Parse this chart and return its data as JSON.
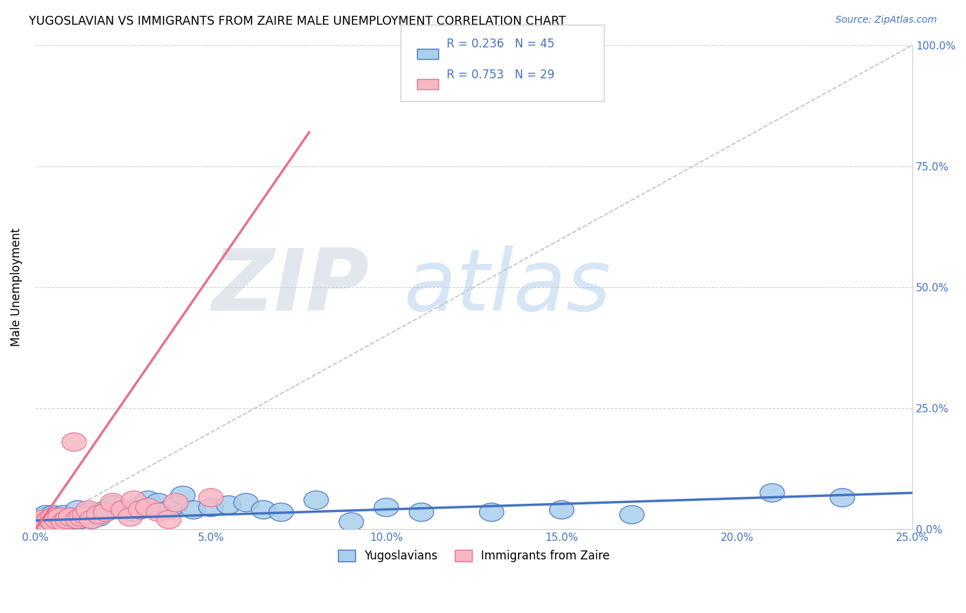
{
  "title": "YUGOSLAVIAN VS IMMIGRANTS FROM ZAIRE MALE UNEMPLOYMENT CORRELATION CHART",
  "source": "Source: ZipAtlas.com",
  "xlim": [
    0.0,
    0.25
  ],
  "ylim": [
    0.0,
    1.0
  ],
  "watermark_zip": "ZIP",
  "watermark_atlas": "atlas",
  "legend1_r": "0.236",
  "legend1_n": "45",
  "legend2_r": "0.753",
  "legend2_n": "29",
  "color_blue_fill": "#A8CFEC",
  "color_pink_fill": "#F7B8C4",
  "color_blue_edge": "#4472C4",
  "color_pink_edge": "#E87090",
  "color_blue_line": "#4472C4",
  "color_pink_line": "#E87090",
  "color_diag": "#C0C0C0",
  "color_grid": "#D0D0D0",
  "yugoslavian_x": [
    0.001,
    0.002,
    0.003,
    0.003,
    0.004,
    0.005,
    0.005,
    0.006,
    0.007,
    0.008,
    0.009,
    0.01,
    0.011,
    0.012,
    0.013,
    0.014,
    0.015,
    0.016,
    0.017,
    0.018,
    0.02,
    0.022,
    0.025,
    0.028,
    0.03,
    0.032,
    0.035,
    0.038,
    0.04,
    0.042,
    0.045,
    0.05,
    0.055,
    0.06,
    0.065,
    0.07,
    0.08,
    0.09,
    0.1,
    0.11,
    0.13,
    0.15,
    0.17,
    0.21,
    0.23
  ],
  "yugoslavian_y": [
    0.02,
    0.025,
    0.015,
    0.03,
    0.02,
    0.025,
    0.03,
    0.02,
    0.025,
    0.03,
    0.015,
    0.025,
    0.02,
    0.04,
    0.02,
    0.025,
    0.035,
    0.02,
    0.03,
    0.025,
    0.04,
    0.05,
    0.04,
    0.035,
    0.05,
    0.06,
    0.055,
    0.04,
    0.05,
    0.07,
    0.04,
    0.045,
    0.05,
    0.055,
    0.04,
    0.035,
    0.06,
    0.015,
    0.045,
    0.035,
    0.035,
    0.04,
    0.03,
    0.075,
    0.065
  ],
  "zaire_x": [
    0.001,
    0.002,
    0.003,
    0.004,
    0.005,
    0.005,
    0.006,
    0.007,
    0.008,
    0.009,
    0.01,
    0.011,
    0.012,
    0.013,
    0.014,
    0.015,
    0.016,
    0.018,
    0.02,
    0.022,
    0.025,
    0.027,
    0.028,
    0.03,
    0.032,
    0.035,
    0.038,
    0.04,
    0.05
  ],
  "zaire_y": [
    0.015,
    0.02,
    0.015,
    0.02,
    0.025,
    0.015,
    0.02,
    0.025,
    0.015,
    0.02,
    0.025,
    0.18,
    0.02,
    0.025,
    0.03,
    0.04,
    0.02,
    0.03,
    0.035,
    0.055,
    0.04,
    0.025,
    0.06,
    0.04,
    0.045,
    0.035,
    0.02,
    0.055,
    0.065
  ],
  "pink_line_x0": 0.0,
  "pink_line_y0": 0.0,
  "pink_line_x1": 0.078,
  "pink_line_y1": 0.82,
  "blue_line_x0": 0.0,
  "blue_line_y0": 0.018,
  "blue_line_x1": 0.25,
  "blue_line_y1": 0.075
}
